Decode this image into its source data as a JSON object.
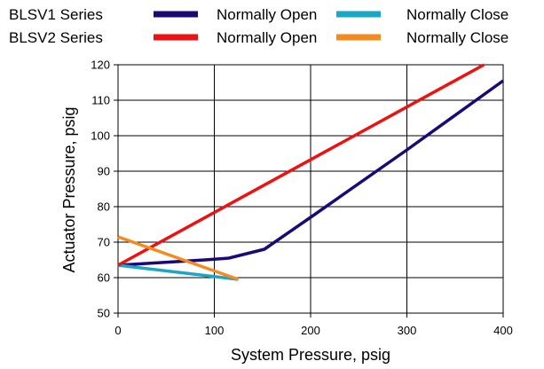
{
  "chart_data": {
    "type": "line",
    "xlabel": "System Pressure, psig",
    "ylabel": "Actuator Pressure, psig",
    "xlim": [
      0,
      400
    ],
    "ylim": [
      50,
      120
    ],
    "xticks": [
      0,
      100,
      200,
      300,
      400
    ],
    "yticks": [
      50,
      60,
      70,
      80,
      90,
      100,
      110,
      120
    ],
    "grid": true,
    "legend_placement": "top",
    "legend": {
      "rows": [
        {
          "series_label": "BLSV1 Series",
          "entries": [
            {
              "label": "Normally Open",
              "color": "#1a0a78"
            },
            {
              "label": "Normally Close",
              "color": "#1aa6c4"
            }
          ]
        },
        {
          "series_label": "BLSV2 Series",
          "entries": [
            {
              "label": "Normally Open",
              "color": "#ee1111"
            },
            {
              "label": "Normally Close",
              "color": "#f58a1f"
            }
          ]
        }
      ]
    },
    "series": [
      {
        "name": "BLSV1 Series Normally Open",
        "color": "#1a0a78",
        "x": [
          0,
          90,
          115,
          152,
          200,
          300,
          400
        ],
        "y": [
          63.5,
          65,
          65.5,
          68,
          77,
          96,
          115.5
        ]
      },
      {
        "name": "BLSV1 Series Normally Close",
        "color": "#1aa6c4",
        "x": [
          0,
          125
        ],
        "y": [
          63.5,
          59.5
        ]
      },
      {
        "name": "BLSV2 Series Normally Open",
        "color": "#ee1111",
        "x": [
          0,
          380
        ],
        "y": [
          63.5,
          120
        ]
      },
      {
        "name": "BLSV2 Series Normally Close",
        "color": "#f58a1f",
        "x": [
          0,
          125
        ],
        "y": [
          71.5,
          59.5
        ]
      }
    ]
  }
}
